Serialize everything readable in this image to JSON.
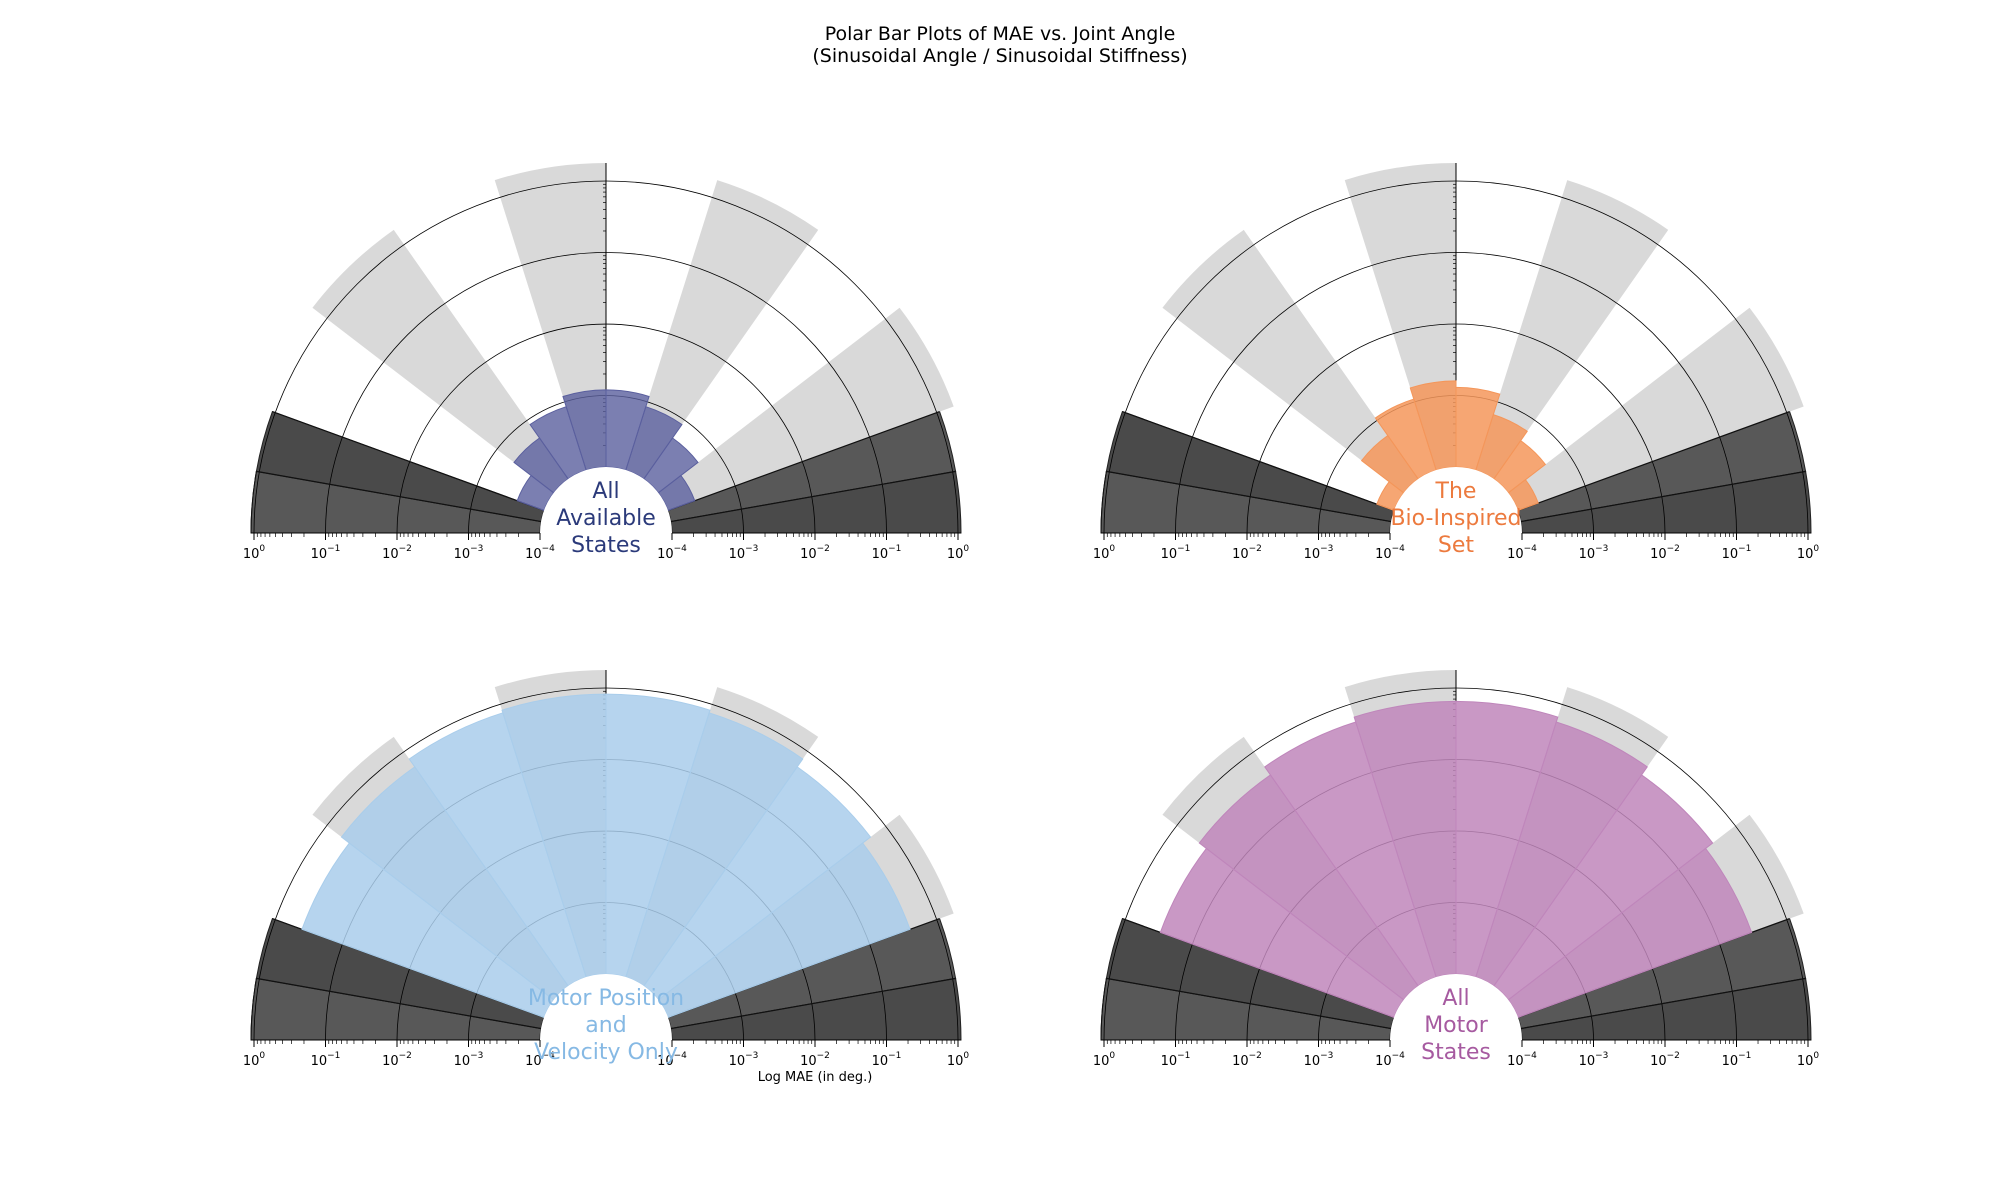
{
  "title": {
    "line1": "Polar Bar Plots of MAE vs. Joint Angle",
    "line2": "(Sinusoidal Angle / Sinusoidal Stiffness)"
  },
  "shared_axis_label": "Log MAE (in deg.)",
  "colors": {
    "grey_background": "#d9d9d9",
    "dark_sector_outer": "#4a4a4a",
    "dark_sector_inner": "#585858",
    "grid": "#000000"
  },
  "chart_data": [
    {
      "type": "polar-bar",
      "center_label": [
        "All",
        "Available",
        "States"
      ],
      "color": "#5a5f9e",
      "label_color": "#2b3a7a",
      "bar_opacity": 0.8,
      "angular_range_deg": [
        -70,
        70
      ],
      "bins": 8,
      "radial_axis": "log",
      "rlim": [
        0.0001,
        1
      ],
      "tick_labels": [
        "10^0",
        "10^-1",
        "10^-2",
        "10^-3",
        "10^-4",
        "10^-4",
        "10^-3",
        "10^-2",
        "10^-1",
        "10^0"
      ],
      "values": [
        0.00025,
        0.0005,
        0.00085,
        0.0012,
        0.0012,
        0.00085,
        0.0005,
        0.00025
      ]
    },
    {
      "type": "polar-bar",
      "center_label": [
        "The",
        "Bio-Inspired",
        "Set"
      ],
      "color": "#f4965a",
      "label_color": "#ec7a3e",
      "bar_opacity": 0.85,
      "angular_range_deg": [
        -70,
        70
      ],
      "bins": 8,
      "radial_axis": "log",
      "rlim": [
        0.0001,
        1
      ],
      "tick_labels": [
        "10^0",
        "10^-1",
        "10^-2",
        "10^-3",
        "10^-4",
        "10^-4",
        "10^-3",
        "10^-2",
        "10^-1",
        "10^0"
      ],
      "values": [
        0.00018,
        0.00055,
        0.0011,
        0.0016,
        0.0013,
        0.00065,
        0.00045,
        0.0002
      ]
    },
    {
      "type": "polar-bar",
      "center_label": [
        "Motor Position",
        "and",
        "Velocity Only"
      ],
      "color": "#a9cdeb",
      "label_color": "#86b9e4",
      "bar_opacity": 0.85,
      "angular_range_deg": [
        -70,
        70
      ],
      "bins": 8,
      "radial_axis": "log",
      "rlim": [
        0.0001,
        1
      ],
      "tick_labels": [
        "10^0",
        "10^-1",
        "10^-2",
        "10^-3",
        "10^-4",
        "10^-4",
        "10^-3",
        "10^-2",
        "10^-1",
        "10^0"
      ],
      "values": [
        0.4,
        0.55,
        0.75,
        0.82,
        0.82,
        0.75,
        0.55,
        0.4
      ]
    },
    {
      "type": "polar-bar",
      "center_label": [
        "All",
        "Motor",
        "States"
      ],
      "color": "#bf86bb",
      "label_color": "#a65aa0",
      "bar_opacity": 0.85,
      "angular_range_deg": [
        -70,
        70
      ],
      "bins": 8,
      "radial_axis": "log",
      "rlim": [
        0.0001,
        1
      ],
      "tick_labels": [
        "10^0",
        "10^-1",
        "10^-2",
        "10^-3",
        "10^-4",
        "10^-4",
        "10^-3",
        "10^-2",
        "10^-1",
        "10^0"
      ],
      "values": [
        0.3,
        0.4,
        0.55,
        0.65,
        0.65,
        0.55,
        0.4,
        0.3
      ]
    }
  ]
}
